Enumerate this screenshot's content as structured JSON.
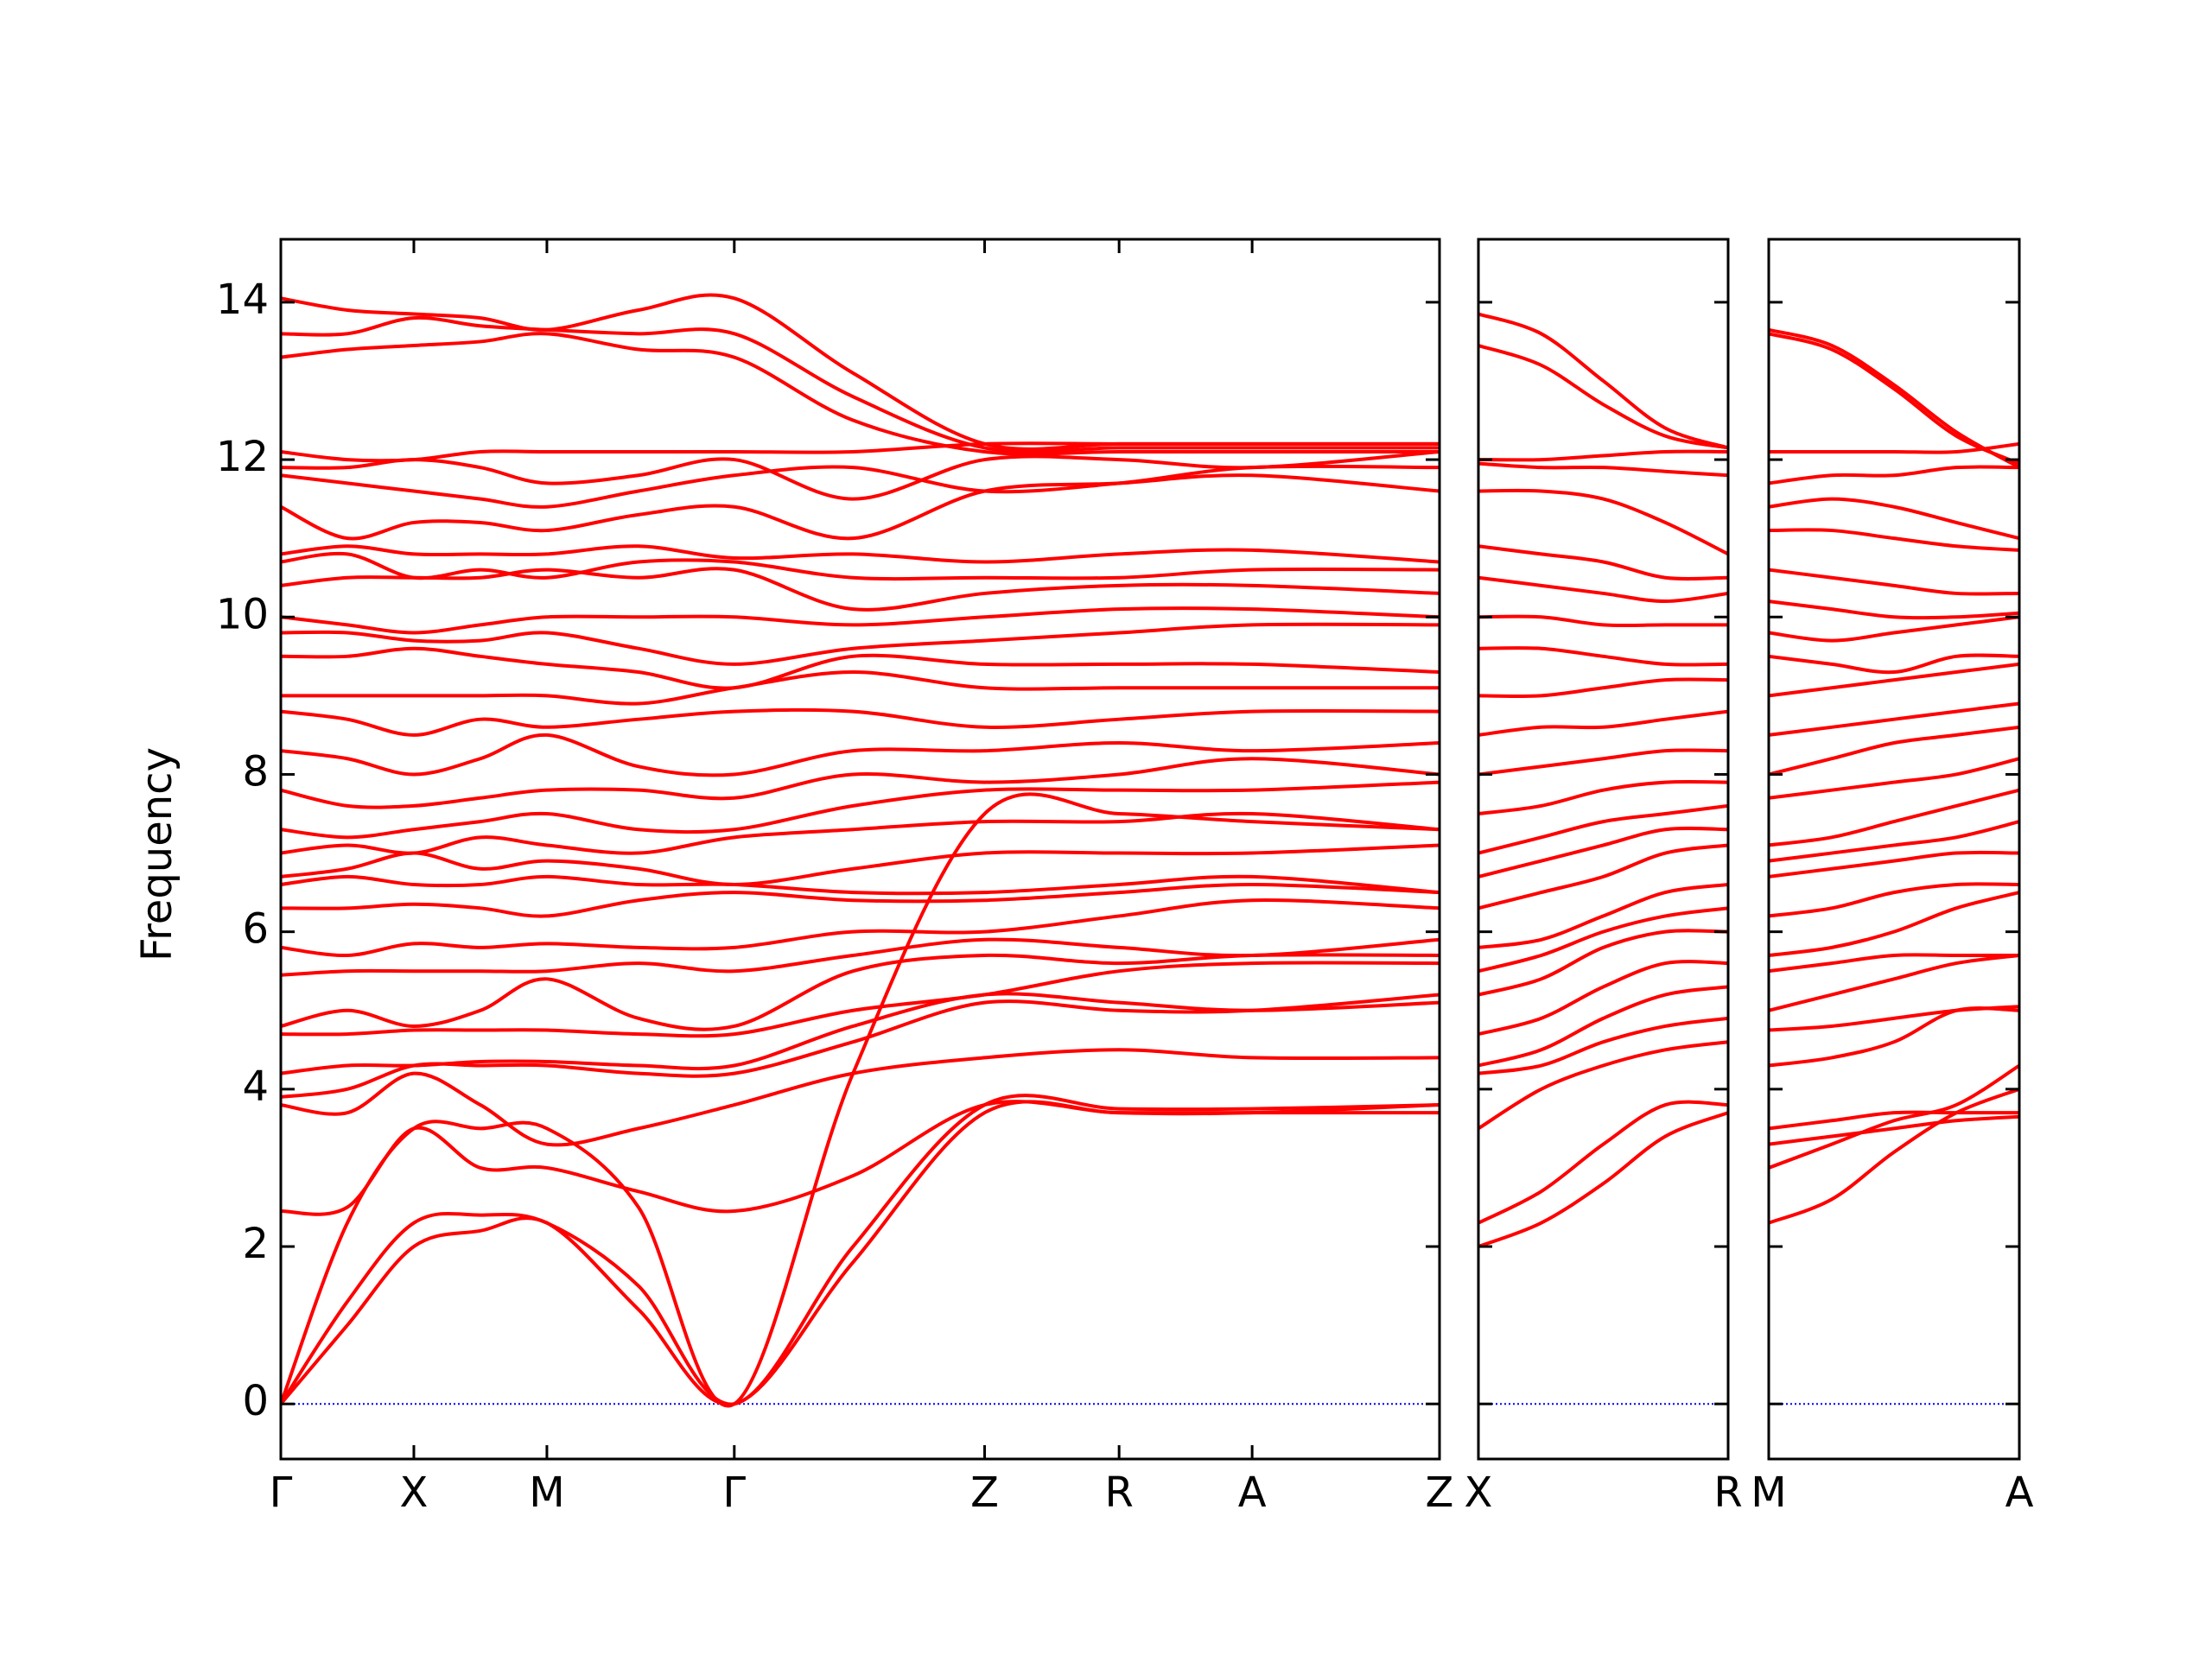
{
  "chart_data": [
    {
      "type": "line",
      "ylabel": "Frequency",
      "color": "#ff0000",
      "show_ytick_labels": true,
      "hline": 0,
      "hline_color": "#0000ff",
      "xlim": [
        0,
        8.1
      ],
      "ylim": [
        -0.7,
        14.8
      ],
      "xticks": [
        {
          "value": 0,
          "label": "Γ"
        },
        {
          "value": 0.93,
          "label": "X"
        },
        {
          "value": 1.86,
          "label": "M"
        },
        {
          "value": 3.17,
          "label": "Γ"
        },
        {
          "value": 4.92,
          "label": "Z"
        },
        {
          "value": 5.86,
          "label": "R"
        },
        {
          "value": 6.79,
          "label": "A"
        },
        {
          "value": 8.1,
          "label": "Z"
        }
      ],
      "yticks": [
        0,
        2,
        4,
        6,
        8,
        10,
        12,
        14
      ],
      "x": [
        0,
        0.465,
        0.93,
        1.395,
        1.86,
        2.5,
        3.17,
        4.0,
        4.92,
        5.86,
        6.79,
        8.1
      ],
      "series": [
        {
          "values": [
            0,
            1.0,
            2.0,
            2.2,
            2.3,
            1.2,
            0,
            1.8,
            3.7,
            3.7,
            3.7,
            3.7
          ]
        },
        {
          "values": [
            0,
            1.3,
            2.3,
            2.4,
            2.3,
            1.5,
            0,
            2.0,
            3.8,
            3.75,
            3.75,
            3.8
          ]
        },
        {
          "values": [
            0,
            2.3,
            3.5,
            3.5,
            3.5,
            2.5,
            0,
            4.2,
            7.5,
            7.5,
            7.4,
            7.3
          ]
        },
        {
          "values": [
            2.45,
            2.5,
            3.5,
            3.0,
            3.0,
            2.7,
            2.45,
            2.9,
            3.8,
            3.7,
            3.7,
            3.8
          ]
        },
        {
          "values": [
            3.8,
            3.7,
            4.2,
            3.8,
            3.3,
            3.5,
            3.8,
            4.2,
            4.4,
            4.5,
            4.4,
            4.4
          ]
        },
        {
          "values": [
            3.9,
            4.0,
            4.3,
            4.3,
            4.3,
            4.2,
            4.2,
            4.6,
            5.1,
            5.0,
            5.0,
            5.2
          ]
        },
        {
          "values": [
            4.2,
            4.3,
            4.3,
            4.35,
            4.35,
            4.3,
            4.3,
            4.8,
            5.2,
            5.1,
            5.0,
            5.1
          ]
        },
        {
          "values": [
            4.7,
            4.7,
            4.75,
            4.75,
            4.75,
            4.7,
            4.7,
            5.0,
            5.2,
            5.5,
            5.6,
            5.6
          ]
        },
        {
          "values": [
            4.8,
            5.0,
            4.8,
            5.0,
            5.4,
            4.9,
            4.8,
            5.5,
            5.7,
            5.6,
            5.7,
            5.7
          ]
        },
        {
          "values": [
            5.45,
            5.5,
            5.5,
            5.5,
            5.5,
            5.6,
            5.5,
            5.7,
            5.9,
            5.8,
            5.7,
            5.9
          ]
        },
        {
          "values": [
            5.8,
            5.7,
            5.85,
            5.8,
            5.85,
            5.8,
            5.8,
            6.0,
            6.0,
            6.2,
            6.4,
            6.3
          ]
        },
        {
          "values": [
            6.3,
            6.3,
            6.35,
            6.3,
            6.2,
            6.4,
            6.5,
            6.4,
            6.4,
            6.5,
            6.6,
            6.5
          ]
        },
        {
          "values": [
            6.6,
            6.7,
            6.6,
            6.6,
            6.7,
            6.6,
            6.6,
            6.5,
            6.5,
            6.6,
            6.7,
            6.5
          ]
        },
        {
          "values": [
            6.7,
            6.8,
            7.0,
            6.8,
            6.9,
            6.8,
            6.6,
            6.8,
            7.0,
            7.0,
            7.0,
            7.1
          ]
        },
        {
          "values": [
            7.0,
            7.1,
            7.0,
            7.2,
            7.1,
            7.0,
            7.2,
            7.3,
            7.4,
            7.4,
            7.5,
            7.3
          ]
        },
        {
          "values": [
            7.3,
            7.2,
            7.3,
            7.4,
            7.5,
            7.3,
            7.3,
            7.6,
            7.8,
            7.8,
            7.8,
            7.9
          ]
        },
        {
          "values": [
            7.8,
            7.6,
            7.6,
            7.7,
            7.8,
            7.8,
            7.7,
            8.0,
            7.9,
            8.0,
            8.2,
            8.0
          ]
        },
        {
          "values": [
            8.3,
            8.2,
            8.0,
            8.2,
            8.5,
            8.1,
            8.0,
            8.3,
            8.3,
            8.4,
            8.3,
            8.4
          ]
        },
        {
          "values": [
            8.8,
            8.7,
            8.5,
            8.7,
            8.6,
            8.7,
            8.8,
            8.8,
            8.6,
            8.7,
            8.8,
            8.8
          ]
        },
        {
          "values": [
            9.0,
            9.0,
            9.0,
            9.0,
            9.0,
            8.9,
            9.1,
            9.3,
            9.1,
            9.1,
            9.1,
            9.1
          ]
        },
        {
          "values": [
            9.5,
            9.5,
            9.6,
            9.5,
            9.4,
            9.3,
            9.1,
            9.5,
            9.4,
            9.4,
            9.4,
            9.3
          ]
        },
        {
          "values": [
            9.8,
            9.8,
            9.7,
            9.7,
            9.8,
            9.6,
            9.4,
            9.6,
            9.7,
            9.8,
            9.9,
            9.9
          ]
        },
        {
          "values": [
            10.0,
            9.9,
            9.8,
            9.9,
            10.0,
            10.0,
            10.0,
            9.9,
            10.0,
            10.1,
            10.1,
            10.0
          ]
        },
        {
          "values": [
            10.4,
            10.5,
            10.5,
            10.5,
            10.6,
            10.5,
            10.6,
            10.1,
            10.3,
            10.4,
            10.4,
            10.3
          ]
        },
        {
          "values": [
            10.7,
            10.8,
            10.5,
            10.6,
            10.5,
            10.7,
            10.7,
            10.5,
            10.5,
            10.5,
            10.6,
            10.6
          ]
        },
        {
          "values": [
            10.8,
            10.9,
            10.8,
            10.8,
            10.8,
            10.9,
            10.75,
            10.8,
            10.7,
            10.8,
            10.85,
            10.7
          ]
        },
        {
          "values": [
            11.4,
            11.0,
            11.2,
            11.2,
            11.1,
            11.3,
            11.4,
            11.0,
            11.6,
            11.7,
            11.8,
            11.6
          ]
        },
        {
          "values": [
            11.8,
            11.7,
            11.6,
            11.5,
            11.4,
            11.6,
            11.8,
            11.9,
            11.6,
            11.7,
            11.9,
            11.9
          ]
        },
        {
          "values": [
            11.9,
            11.9,
            12.0,
            11.9,
            11.7,
            11.8,
            12.0,
            11.5,
            12.0,
            12.0,
            11.9,
            12.1
          ]
        },
        {
          "values": [
            12.1,
            12.0,
            12.0,
            12.1,
            12.1,
            12.1,
            12.1,
            12.1,
            12.2,
            12.2,
            12.2,
            12.2
          ]
        },
        {
          "values": [
            13.3,
            13.4,
            13.45,
            13.5,
            13.6,
            13.4,
            13.3,
            12.5,
            12.1,
            12.1,
            12.1,
            12.1
          ]
        },
        {
          "values": [
            13.6,
            13.6,
            13.8,
            13.7,
            13.65,
            13.6,
            13.6,
            12.8,
            12.15,
            12.15,
            12.15,
            12.15
          ]
        },
        {
          "values": [
            14.05,
            13.9,
            13.85,
            13.8,
            13.65,
            13.9,
            14.05,
            13.1,
            12.2,
            12.2,
            12.2,
            12.2
          ]
        }
      ]
    },
    {
      "type": "line",
      "color": "#ff0000",
      "show_ytick_labels": false,
      "hline": 0,
      "hline_color": "#0000ff",
      "xlim": [
        0,
        1.75
      ],
      "ylim": [
        -0.7,
        14.8
      ],
      "xticks": [
        {
          "value": 0,
          "label": "X"
        },
        {
          "value": 1.75,
          "label": "R"
        }
      ],
      "yticks": [
        0,
        2,
        4,
        6,
        8,
        10,
        12,
        14
      ],
      "x": [
        0,
        0.44,
        0.875,
        1.31,
        1.75
      ],
      "series": [
        {
          "values": [
            2.0,
            2.3,
            2.8,
            3.4,
            3.7
          ]
        },
        {
          "values": [
            2.3,
            2.7,
            3.3,
            3.8,
            3.8
          ]
        },
        {
          "values": [
            3.5,
            4.0,
            4.3,
            4.5,
            4.6
          ]
        },
        {
          "values": [
            4.2,
            4.3,
            4.6,
            4.8,
            4.9
          ]
        },
        {
          "values": [
            4.3,
            4.5,
            4.9,
            5.2,
            5.3
          ]
        },
        {
          "values": [
            4.7,
            4.9,
            5.3,
            5.6,
            5.6
          ]
        },
        {
          "values": [
            5.2,
            5.4,
            5.8,
            6.0,
            6.0
          ]
        },
        {
          "values": [
            5.5,
            5.7,
            6.0,
            6.2,
            6.3
          ]
        },
        {
          "values": [
            5.8,
            5.9,
            6.2,
            6.5,
            6.6
          ]
        },
        {
          "values": [
            6.3,
            6.5,
            6.7,
            7.0,
            7.1
          ]
        },
        {
          "values": [
            6.7,
            6.9,
            7.1,
            7.3,
            7.3
          ]
        },
        {
          "values": [
            7.0,
            7.2,
            7.4,
            7.5,
            7.6
          ]
        },
        {
          "values": [
            7.5,
            7.6,
            7.8,
            7.9,
            7.9
          ]
        },
        {
          "values": [
            8.0,
            8.1,
            8.2,
            8.3,
            8.3
          ]
        },
        {
          "values": [
            8.5,
            8.6,
            8.6,
            8.7,
            8.8
          ]
        },
        {
          "values": [
            9.0,
            9.0,
            9.1,
            9.2,
            9.2
          ]
        },
        {
          "values": [
            9.6,
            9.6,
            9.5,
            9.4,
            9.4
          ]
        },
        {
          "values": [
            10.0,
            10.0,
            9.9,
            9.9,
            9.9
          ]
        },
        {
          "values": [
            10.5,
            10.4,
            10.3,
            10.2,
            10.3
          ]
        },
        {
          "values": [
            10.9,
            10.8,
            10.7,
            10.5,
            10.5
          ]
        },
        {
          "values": [
            11.6,
            11.6,
            11.5,
            11.2,
            10.8
          ]
        },
        {
          "values": [
            11.95,
            11.9,
            11.9,
            11.85,
            11.8
          ]
        },
        {
          "values": [
            12.0,
            12.0,
            12.05,
            12.1,
            12.1
          ]
        },
        {
          "values": [
            13.45,
            13.2,
            12.7,
            12.3,
            12.15
          ]
        },
        {
          "values": [
            13.85,
            13.6,
            13.0,
            12.4,
            12.15
          ]
        }
      ]
    },
    {
      "type": "line",
      "color": "#ff0000",
      "show_ytick_labels": false,
      "hline": 0,
      "hline_color": "#0000ff",
      "xlim": [
        0,
        1.75
      ],
      "ylim": [
        -0.7,
        14.8
      ],
      "xticks": [
        {
          "value": 0,
          "label": "M"
        },
        {
          "value": 1.75,
          "label": "A"
        }
      ],
      "yticks": [
        0,
        2,
        4,
        6,
        8,
        10,
        12,
        14
      ],
      "x": [
        0,
        0.44,
        0.875,
        1.31,
        1.75
      ],
      "series": [
        {
          "values": [
            2.3,
            2.6,
            3.2,
            3.7,
            4.0
          ]
        },
        {
          "values": [
            3.0,
            3.3,
            3.6,
            3.8,
            4.3
          ]
        },
        {
          "values": [
            3.3,
            3.4,
            3.5,
            3.6,
            3.65
          ]
        },
        {
          "values": [
            3.5,
            3.6,
            3.7,
            3.7,
            3.7
          ]
        },
        {
          "values": [
            4.3,
            4.4,
            4.6,
            5.0,
            5.0
          ]
        },
        {
          "values": [
            4.75,
            4.8,
            4.9,
            5.0,
            5.05
          ]
        },
        {
          "values": [
            5.0,
            5.2,
            5.4,
            5.6,
            5.7
          ]
        },
        {
          "values": [
            5.5,
            5.6,
            5.7,
            5.7,
            5.7
          ]
        },
        {
          "values": [
            5.7,
            5.8,
            6.0,
            6.3,
            6.5
          ]
        },
        {
          "values": [
            6.2,
            6.3,
            6.5,
            6.6,
            6.6
          ]
        },
        {
          "values": [
            6.7,
            6.8,
            6.9,
            7.0,
            7.0
          ]
        },
        {
          "values": [
            6.9,
            7.0,
            7.1,
            7.2,
            7.4
          ]
        },
        {
          "values": [
            7.1,
            7.2,
            7.4,
            7.6,
            7.8
          ]
        },
        {
          "values": [
            7.7,
            7.8,
            7.9,
            8.0,
            8.2
          ]
        },
        {
          "values": [
            8.0,
            8.2,
            8.4,
            8.5,
            8.6
          ]
        },
        {
          "values": [
            8.5,
            8.6,
            8.7,
            8.8,
            8.9
          ]
        },
        {
          "values": [
            9.0,
            9.1,
            9.2,
            9.3,
            9.4
          ]
        },
        {
          "values": [
            9.5,
            9.4,
            9.3,
            9.5,
            9.5
          ]
        },
        {
          "values": [
            9.8,
            9.7,
            9.8,
            9.9,
            10.0
          ]
        },
        {
          "values": [
            10.2,
            10.1,
            10.0,
            10.0,
            10.05
          ]
        },
        {
          "values": [
            10.6,
            10.5,
            10.4,
            10.3,
            10.3
          ]
        },
        {
          "values": [
            11.1,
            11.1,
            11.0,
            10.9,
            10.85
          ]
        },
        {
          "values": [
            11.4,
            11.5,
            11.4,
            11.2,
            11.0
          ]
        },
        {
          "values": [
            11.7,
            11.8,
            11.8,
            11.9,
            11.9
          ]
        },
        {
          "values": [
            12.1,
            12.1,
            12.1,
            12.1,
            12.2
          ]
        },
        {
          "values": [
            13.6,
            13.4,
            12.9,
            12.3,
            11.95
          ]
        },
        {
          "values": [
            13.65,
            13.45,
            12.95,
            12.35,
            11.9
          ]
        }
      ]
    }
  ]
}
